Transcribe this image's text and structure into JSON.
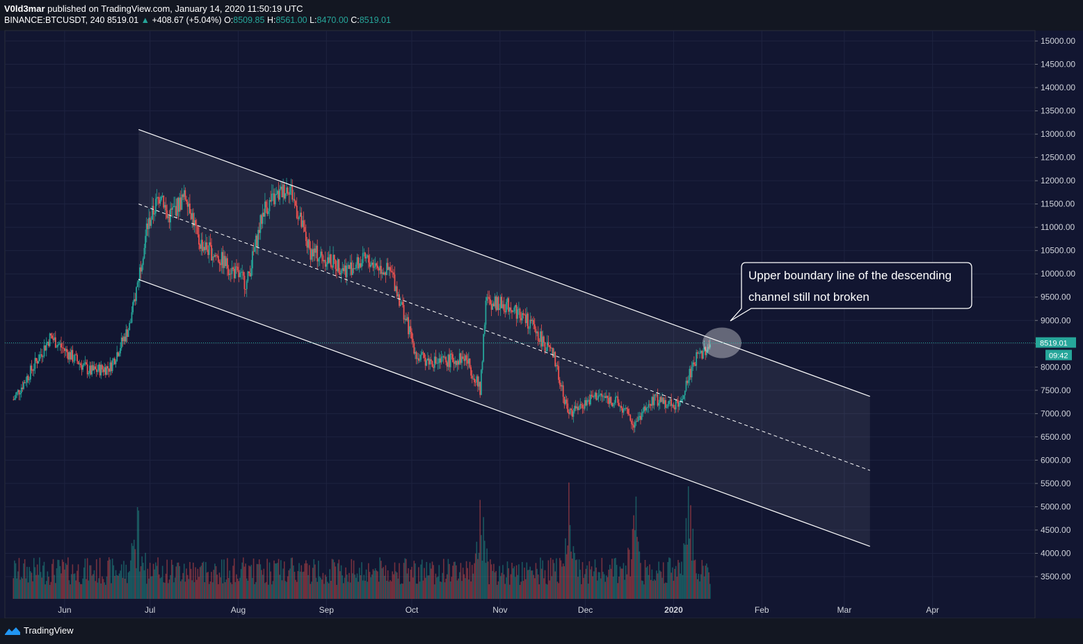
{
  "header": {
    "author": "V0ld3mar",
    "published_text": "published on TradingView.com, January 14, 2020 11:50:19 UTC",
    "symbol": "BINANCE:BTCUSDT, 240",
    "last": "8519.01",
    "change_arrow": "▲",
    "change": "+408.67 (+5.04%)",
    "o_label": "O:",
    "o_value": "8509.85",
    "h_label": "H:",
    "h_value": "8561.00",
    "l_label": "L:",
    "l_value": "8470.00",
    "c_label": "C:",
    "c_value": "8519.01"
  },
  "footer": {
    "brand": "TradingView",
    "logo_icon": "tradingview-logo-icon"
  },
  "annotation": {
    "line1": "Upper boundary line of the descending",
    "line2": "channel still not broken"
  },
  "price_label": {
    "value": "8519.01",
    "countdown": "09:42"
  },
  "colors": {
    "up": "#26a69a",
    "down": "#ef5350",
    "background": "#121631",
    "channel": "#ffffff"
  },
  "chart_data": {
    "type": "candlestick",
    "symbol": "BINANCE:BTCUSDT",
    "interval": "240",
    "x_ticks": [
      "Jun",
      "Jul",
      "Aug",
      "Sep",
      "Oct",
      "Nov",
      "Dec",
      "2020",
      "Feb",
      "Mar",
      "Apr"
    ],
    "x_tick_dates": [
      "2019-06-01",
      "2019-07-01",
      "2019-08-01",
      "2019-09-01",
      "2019-10-01",
      "2019-11-01",
      "2019-12-01",
      "2020-01-01",
      "2020-02-01",
      "2020-03-01",
      "2020-04-01"
    ],
    "y_ticks": [
      "15000.00",
      "14500.00",
      "14000.00",
      "13500.00",
      "13000.00",
      "12500.00",
      "12000.00",
      "11500.00",
      "11000.00",
      "10500.00",
      "10000.00",
      "9500.00",
      "9000.00",
      "8500.00",
      "8000.00",
      "7500.00",
      "7000.00",
      "6500.00",
      "6000.00",
      "5500.00",
      "5000.00",
      "4500.00",
      "4000.00",
      "3500.00"
    ],
    "y_range": [
      3000,
      15300
    ],
    "last_price": 8519.01,
    "price_path": [
      [
        "2019-05-14",
        7300
      ],
      [
        "2019-05-20",
        7900
      ],
      [
        "2019-05-27",
        8650
      ],
      [
        "2019-06-03",
        8250
      ],
      [
        "2019-06-10",
        7900
      ],
      [
        "2019-06-17",
        8000
      ],
      [
        "2019-06-24",
        8900
      ],
      [
        "2019-06-30",
        11000
      ],
      [
        "2019-07-05",
        11800
      ],
      [
        "2019-07-07",
        11200
      ],
      [
        "2019-07-14",
        11700
      ],
      [
        "2019-07-18",
        10700
      ],
      [
        "2019-07-26",
        10300
      ],
      [
        "2019-08-04",
        9800
      ],
      [
        "2019-08-10",
        11400
      ],
      [
        "2019-08-19",
        11900
      ],
      [
        "2019-08-26",
        10500
      ],
      [
        "2019-09-08",
        10100
      ],
      [
        "2019-09-15",
        10300
      ],
      [
        "2019-09-24",
        10000
      ],
      [
        "2019-10-03",
        8200
      ],
      [
        "2019-10-10",
        8100
      ],
      [
        "2019-10-20",
        8200
      ],
      [
        "2019-10-25",
        7500
      ],
      [
        "2019-10-27",
        9400
      ],
      [
        "2019-11-05",
        9300
      ],
      [
        "2019-11-12",
        8900
      ],
      [
        "2019-11-20",
        8200
      ],
      [
        "2019-11-25",
        7000
      ],
      [
        "2019-12-05",
        7400
      ],
      [
        "2019-12-12",
        7250
      ],
      [
        "2019-12-18",
        6800
      ],
      [
        "2019-12-25",
        7300
      ],
      [
        "2020-01-03",
        7200
      ],
      [
        "2020-01-08",
        8100
      ],
      [
        "2020-01-14",
        8519.01
      ]
    ],
    "channel": {
      "upper": [
        [
          "2019-06-27",
          13100
        ],
        [
          "2020-03-10",
          7370
        ]
      ],
      "middle": [
        [
          "2019-06-27",
          11500
        ],
        [
          "2020-03-10",
          5780
        ]
      ],
      "lower": [
        [
          "2019-06-27",
          9880
        ],
        [
          "2020-03-10",
          4150
        ]
      ]
    },
    "volume_peaks_dates": [
      "2019-06-27",
      "2019-10-25",
      "2019-11-25",
      "2019-12-18",
      "2020-01-06"
    ]
  }
}
